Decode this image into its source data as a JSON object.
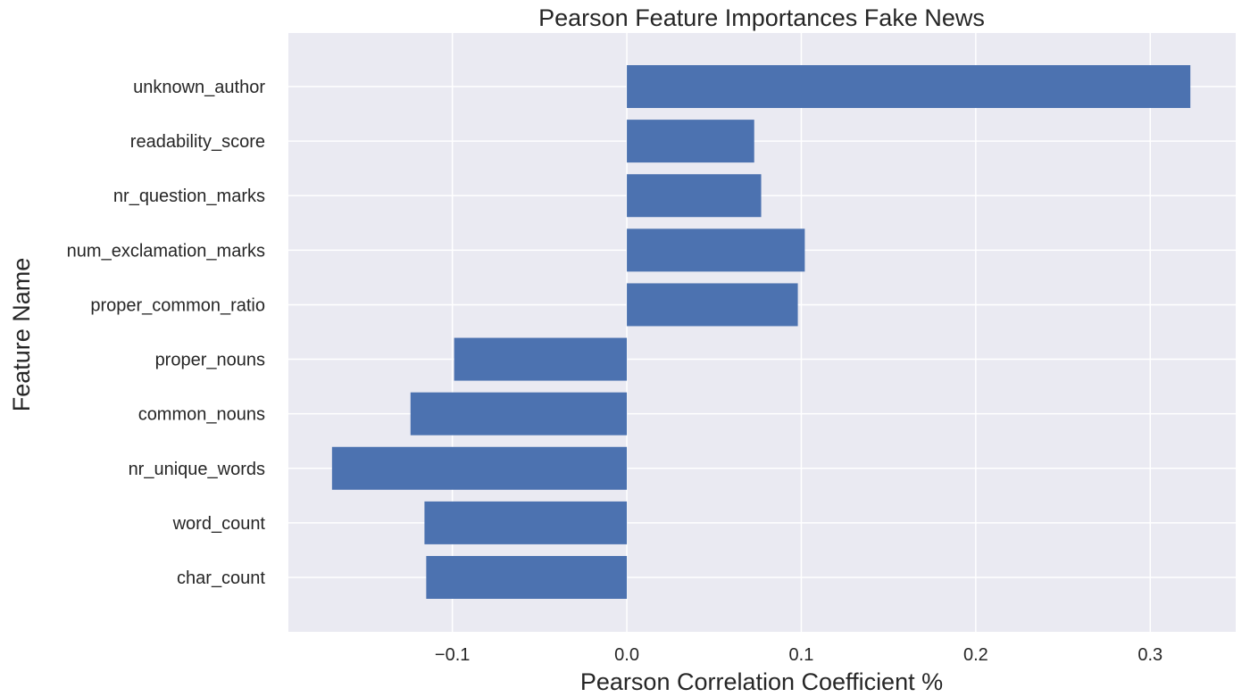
{
  "chart_data": {
    "type": "bar",
    "orientation": "horizontal",
    "title": "Pearson Feature Importances Fake News",
    "xlabel": "Pearson Correlation Coefficient %",
    "ylabel": "Feature Name",
    "categories": [
      "unknown_author",
      "readability_score",
      "nr_question_marks",
      "num_exclamation_marks",
      "proper_common_ratio",
      "proper_nouns",
      "common_nouns",
      "nr_unique_words",
      "word_count",
      "char_count"
    ],
    "values": [
      0.323,
      0.073,
      0.077,
      0.102,
      0.098,
      -0.099,
      -0.124,
      -0.169,
      -0.116,
      -0.115
    ],
    "xlim": [
      -0.194,
      0.349
    ],
    "xticks": [
      -0.1,
      0.0,
      0.1,
      0.2,
      0.3
    ],
    "xtick_labels": [
      "−0.1",
      "0.0",
      "0.1",
      "0.2",
      "0.3"
    ],
    "grid": true,
    "bar_color": "#4c72b0",
    "background_color": "#eaeaf2",
    "grid_color": "#ffffff"
  }
}
